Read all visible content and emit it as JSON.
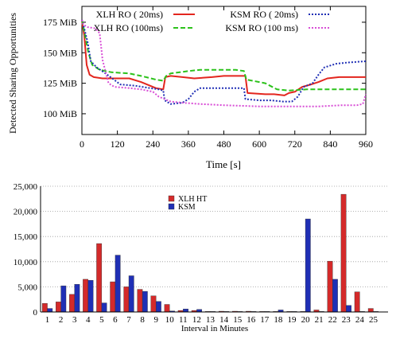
{
  "chart_data": [
    {
      "type": "line",
      "title": "",
      "xlabel": "Time [s]",
      "ylabel": "Detected Sharing Opportunities",
      "xlim": [
        0,
        960
      ],
      "ylim": [
        83,
        188
      ],
      "x_ticks": [
        0,
        120,
        240,
        360,
        480,
        600,
        720,
        840,
        960
      ],
      "y_ticks": [
        {
          "value": 100,
          "label": "100 MiB"
        },
        {
          "value": 125,
          "label": "125 MiB"
        },
        {
          "value": 150,
          "label": "150 MiB"
        },
        {
          "value": 175,
          "label": "175 MiB"
        }
      ],
      "grid": false,
      "legend_position": "top",
      "series": [
        {
          "name": "XLH RO (  20ms)",
          "color": "#e3261e",
          "style": "solid",
          "points": [
            [
              0,
              176
            ],
            [
              8,
              164
            ],
            [
              16,
              140
            ],
            [
              26,
              132
            ],
            [
              40,
              130
            ],
            [
              70,
              129
            ],
            [
              110,
              129
            ],
            [
              160,
              129
            ],
            [
              200,
              126
            ],
            [
              250,
              121
            ],
            [
              275,
              120
            ],
            [
              282,
              130
            ],
            [
              300,
              131
            ],
            [
              340,
              130
            ],
            [
              380,
              129
            ],
            [
              440,
              130
            ],
            [
              480,
              131
            ],
            [
              540,
              131
            ],
            [
              553,
              131
            ],
            [
              560,
              117
            ],
            [
              620,
              116
            ],
            [
              650,
              116
            ],
            [
              685,
              115
            ],
            [
              700,
              117
            ],
            [
              720,
              118
            ],
            [
              745,
              122
            ],
            [
              775,
              124
            ],
            [
              800,
              126
            ],
            [
              830,
              129
            ],
            [
              870,
              130
            ],
            [
              960,
              130
            ]
          ]
        },
        {
          "name": "XLH RO (100ms)",
          "color": "#2cc21b",
          "style": "dashed",
          "points": [
            [
              0,
              177
            ],
            [
              10,
              165
            ],
            [
              22,
              150
            ],
            [
              35,
              140
            ],
            [
              60,
              136
            ],
            [
              100,
              134
            ],
            [
              160,
              133
            ],
            [
              200,
              131
            ],
            [
              250,
              128
            ],
            [
              275,
              127
            ],
            [
              285,
              131
            ],
            [
              300,
              133
            ],
            [
              360,
              135
            ],
            [
              400,
              136
            ],
            [
              460,
              136
            ],
            [
              520,
              136
            ],
            [
              548,
              135
            ],
            [
              556,
              128
            ],
            [
              600,
              126
            ],
            [
              620,
              125
            ],
            [
              660,
              120
            ],
            [
              700,
              119
            ],
            [
              760,
              120
            ],
            [
              960,
              120
            ]
          ]
        },
        {
          "name": "KSM RO (  20ms)",
          "color": "#1f2fb5",
          "style": "dotted",
          "points": [
            [
              0,
              177
            ],
            [
              10,
              168
            ],
            [
              20,
              158
            ],
            [
              30,
              143
            ],
            [
              50,
              138
            ],
            [
              80,
              133
            ],
            [
              130,
              124
            ],
            [
              180,
              123
            ],
            [
              230,
              121
            ],
            [
              260,
              120
            ],
            [
              275,
              119
            ],
            [
              280,
              111
            ],
            [
              300,
              108
            ],
            [
              340,
              109
            ],
            [
              360,
              112
            ],
            [
              380,
              118
            ],
            [
              400,
              121
            ],
            [
              440,
              121
            ],
            [
              520,
              121
            ],
            [
              548,
              121
            ],
            [
              553,
              112
            ],
            [
              600,
              111
            ],
            [
              640,
              111
            ],
            [
              680,
              110
            ],
            [
              710,
              110
            ],
            [
              730,
              114
            ],
            [
              750,
              122
            ],
            [
              780,
              125
            ],
            [
              800,
              132
            ],
            [
              820,
              138
            ],
            [
              860,
              141
            ],
            [
              900,
              142
            ],
            [
              960,
              143
            ]
          ]
        },
        {
          "name": "KSM RO (100 ms)",
          "color": "#d84ed6",
          "style": "dotted",
          "points": [
            [
              0,
              177
            ],
            [
              5,
              173
            ],
            [
              20,
              171
            ],
            [
              45,
              170
            ],
            [
              60,
              166
            ],
            [
              70,
              144
            ],
            [
              90,
              125
            ],
            [
              110,
              122
            ],
            [
              160,
              121
            ],
            [
              200,
              120
            ],
            [
              240,
              118
            ],
            [
              260,
              114
            ],
            [
              280,
              112
            ],
            [
              300,
              110
            ],
            [
              340,
              109
            ],
            [
              400,
              108
            ],
            [
              480,
              107
            ],
            [
              600,
              106
            ],
            [
              700,
              106
            ],
            [
              800,
              106
            ],
            [
              880,
              107
            ],
            [
              930,
              107
            ],
            [
              950,
              108
            ],
            [
              960,
              116
            ]
          ]
        }
      ]
    },
    {
      "type": "bar",
      "title": "",
      "xlabel": "Interval in Minutes",
      "ylabel": "",
      "ylim": [
        0,
        25000
      ],
      "y_ticks": [
        {
          "value": 0,
          "label": "0"
        },
        {
          "value": 5000,
          "label": "5,000"
        },
        {
          "value": 10000,
          "label": "10,000"
        },
        {
          "value": 15000,
          "label": "15,000"
        },
        {
          "value": 20000,
          "label": "20,000"
        },
        {
          "value": 25000,
          "label": "25,000"
        }
      ],
      "categories": [
        "1",
        "2",
        "3",
        "4",
        "5",
        "6",
        "7",
        "8",
        "9",
        "10",
        "11",
        "12",
        "13",
        "14",
        "15",
        "16",
        "17",
        "18",
        "19",
        "20",
        "21",
        "22",
        "23",
        "24",
        "25"
      ],
      "grid": true,
      "legend_position": "top-center",
      "series": [
        {
          "name": "XLH HT",
          "color": "#d42a2a",
          "values": [
            1700,
            2000,
            3500,
            6500,
            13600,
            6000,
            5000,
            4500,
            3200,
            1500,
            300,
            300,
            100,
            150,
            150,
            150,
            100,
            100,
            100,
            100,
            400,
            10100,
            23400,
            4000,
            700
          ]
        },
        {
          "name": "KSM",
          "color": "#1f2fb5",
          "values": [
            700,
            5200,
            5500,
            6300,
            1800,
            11300,
            7200,
            4100,
            2100,
            200,
            600,
            500,
            100,
            100,
            100,
            100,
            100,
            400,
            100,
            18500,
            100,
            6500,
            1300,
            100,
            100
          ]
        }
      ]
    }
  ]
}
